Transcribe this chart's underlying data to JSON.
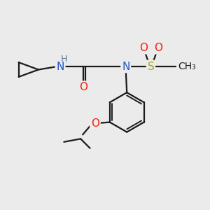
{
  "bg_color": "#ebebeb",
  "bond_color": "#1a1a1a",
  "bond_width": 1.6,
  "atom_colors": {
    "N": "#2255cc",
    "O": "#ee2211",
    "S": "#aaaa00",
    "H": "#557799"
  },
  "font_size_atom": 11,
  "font_size_small": 9
}
